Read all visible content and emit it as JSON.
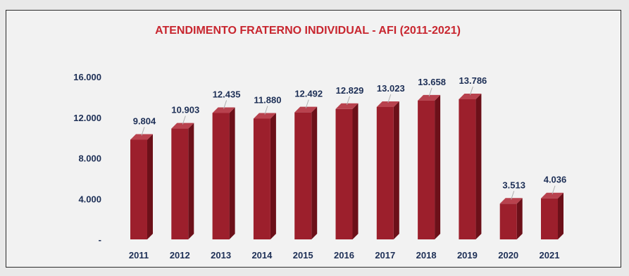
{
  "chart_data": {
    "type": "bar",
    "title": "ATENDIMENTO FRATERNO INDIVIDUAL - AFI  (2011-2021)",
    "xlabel": "",
    "ylabel": "",
    "categories": [
      "2011",
      "2012",
      "2013",
      "2014",
      "2015",
      "2016",
      "2017",
      "2018",
      "2019",
      "2020",
      "2021"
    ],
    "values": [
      9804,
      10903,
      12435,
      11880,
      12492,
      12829,
      13023,
      13658,
      13786,
      3513,
      4036
    ],
    "value_labels": [
      "9.804",
      "10.903",
      "12.435",
      "11.880",
      "12.492",
      "12.829",
      "13.023",
      "13.658",
      "13.786",
      "3.513",
      "4.036"
    ],
    "yticks": [
      0,
      4000,
      8000,
      12000,
      16000
    ],
    "ytick_labels": [
      "-",
      "4.000",
      "8.000",
      "12.000",
      "16.000"
    ],
    "ylim": [
      0,
      16000
    ],
    "grid": false,
    "legend": "none",
    "colors": {
      "bar_front": "#9c1f2c",
      "bar_side": "#6c1019",
      "bar_top": "#b8424e",
      "title": "#c8262f",
      "labels": "#1d2f56"
    }
  }
}
